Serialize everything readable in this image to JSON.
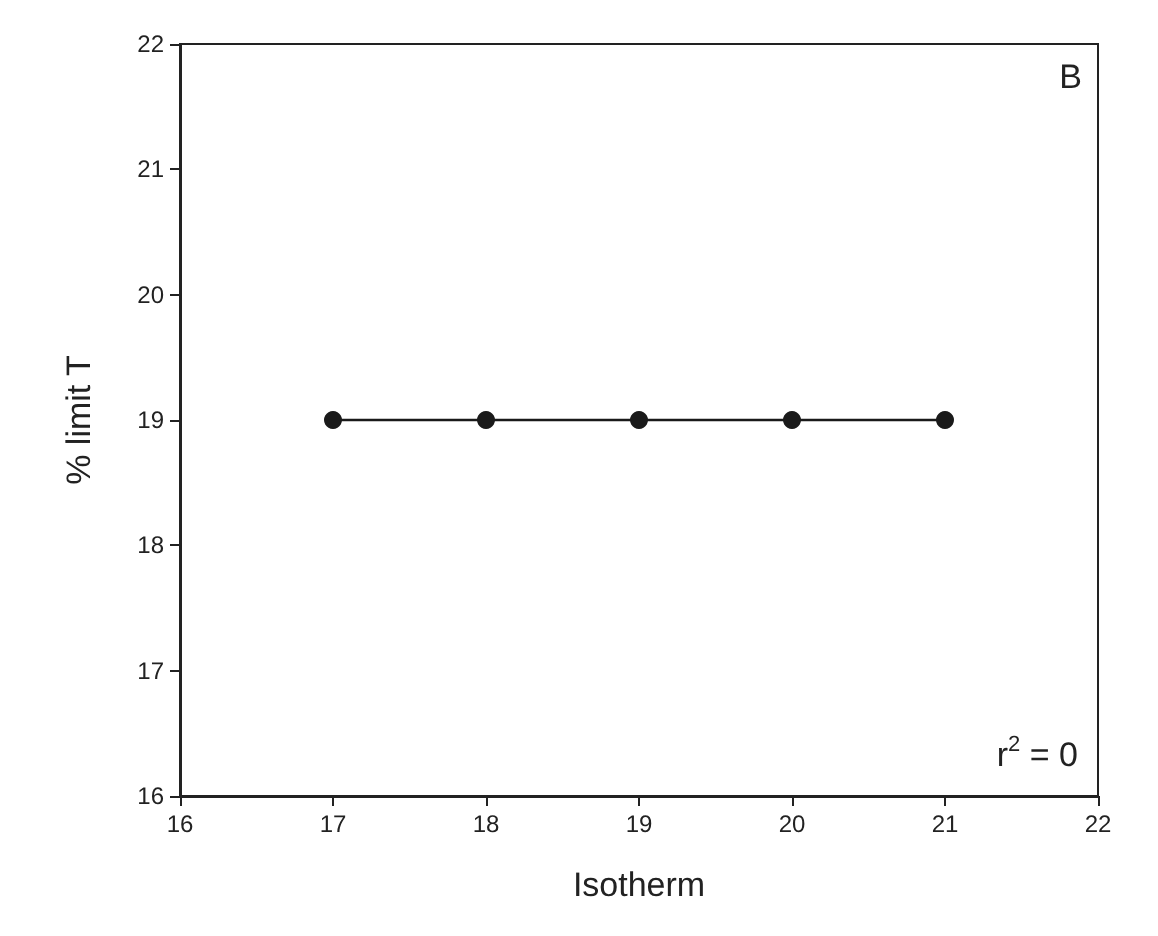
{
  "chart_data": {
    "type": "line",
    "xlabel": "Isotherm",
    "ylabel": "% limit T",
    "x": [
      17,
      18,
      19,
      20,
      21
    ],
    "series": [
      {
        "color": "#1a1a1a",
        "values": [
          19,
          19,
          19,
          19,
          19
        ]
      }
    ],
    "xlim": [
      16,
      22
    ],
    "xticks": [
      16,
      17,
      18,
      19,
      20,
      21,
      22
    ],
    "ylim": [
      16,
      22
    ],
    "yticks": [
      16,
      17,
      18,
      19,
      20,
      21,
      22
    ],
    "marker": "circle",
    "line_style": "solid",
    "grid": false,
    "annotations": [
      "B",
      "r$^{2}$ = 0"
    ]
  }
}
